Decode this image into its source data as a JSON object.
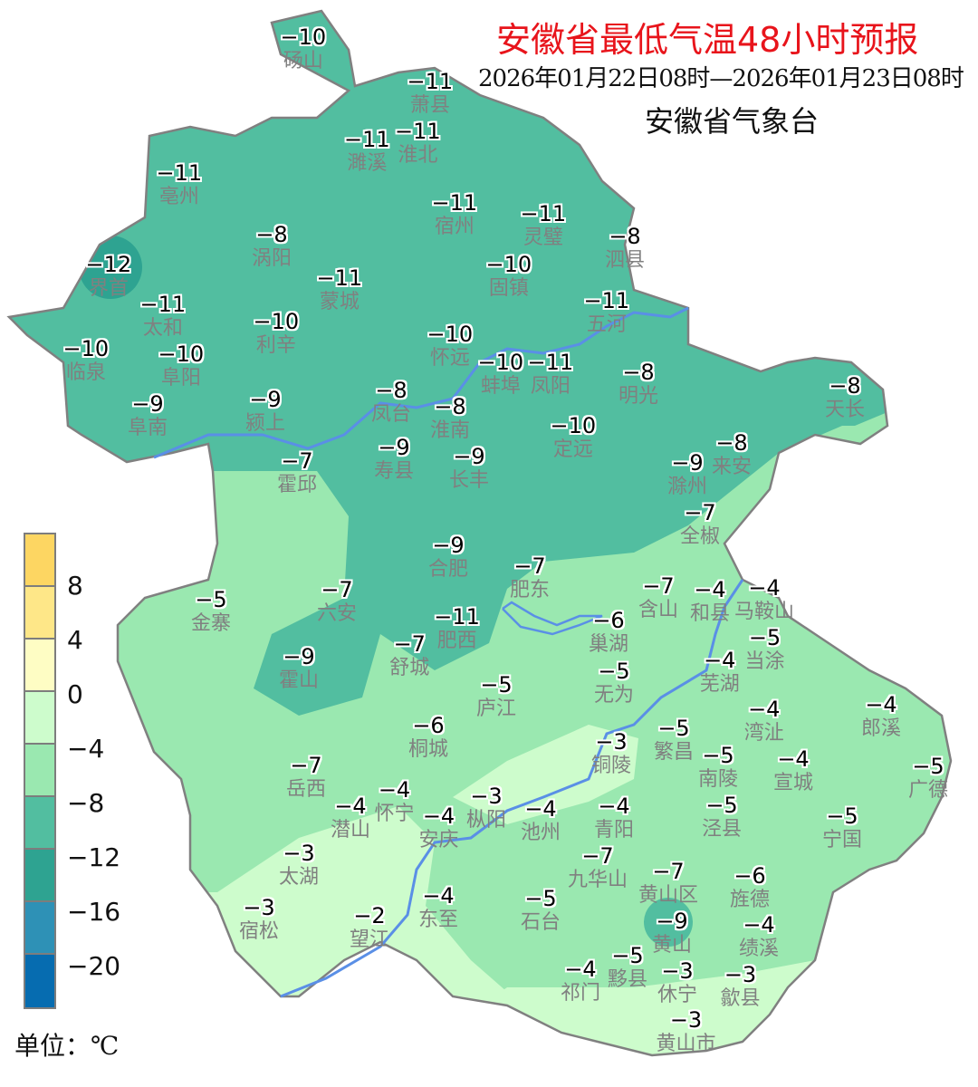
{
  "header": {
    "title": "安徽省最低气温48小时预报",
    "period": "2026年01月22日08时—2026年01月23日08时",
    "issuer": "安徽省气象台"
  },
  "legend": {
    "unit_label": "单位：℃",
    "ticks": [
      "8",
      "4",
      "0",
      "−4",
      "−8",
      "−12",
      "−16",
      "−20"
    ],
    "colors": [
      "#fdd662",
      "#fee788",
      "#fefdc4",
      "#cdfccc",
      "#9ae8b0",
      "#52bea0",
      "#2ea391",
      "#2e91b6",
      "#066cb0"
    ]
  },
  "map_colors": {
    "boundary": "#808080",
    "river": "#5a8fe6"
  },
  "stations": [
    {
      "name": "砀山",
      "value": "−10"
    },
    {
      "name": "萧县",
      "value": "−11"
    },
    {
      "name": "淮北",
      "value": "−11"
    },
    {
      "name": "濉溪",
      "value": "−11"
    },
    {
      "name": "亳州",
      "value": "−11"
    },
    {
      "name": "涡阳",
      "value": "−8"
    },
    {
      "name": "界首",
      "value": "−12"
    },
    {
      "name": "蒙城",
      "value": "−11"
    },
    {
      "name": "宿州",
      "value": "−11"
    },
    {
      "name": "灵璧",
      "value": "−11"
    },
    {
      "name": "泗县",
      "value": "−8"
    },
    {
      "name": "固镇",
      "value": "−10"
    },
    {
      "name": "五河",
      "value": "−11"
    },
    {
      "name": "太和",
      "value": "−11"
    },
    {
      "name": "利辛",
      "value": "−10"
    },
    {
      "name": "临泉",
      "value": "−10"
    },
    {
      "name": "阜阳",
      "value": "−10"
    },
    {
      "name": "怀远",
      "value": "−10"
    },
    {
      "name": "蚌埠",
      "value": "−10"
    },
    {
      "name": "凤阳",
      "value": "−11"
    },
    {
      "name": "明光",
      "value": "−8"
    },
    {
      "name": "天长",
      "value": "−8"
    },
    {
      "name": "阜南",
      "value": "−9"
    },
    {
      "name": "颍上",
      "value": "−9"
    },
    {
      "name": "凤台",
      "value": "−8"
    },
    {
      "name": "淮南",
      "value": "−8"
    },
    {
      "name": "定远",
      "value": "−10"
    },
    {
      "name": "寿县",
      "value": "−9"
    },
    {
      "name": "长丰",
      "value": "−9"
    },
    {
      "name": "霍邱",
      "value": "−7"
    },
    {
      "name": "来安",
      "value": "−8"
    },
    {
      "name": "滁州",
      "value": "−9"
    },
    {
      "name": "全椒",
      "value": "−7"
    },
    {
      "name": "合肥",
      "value": "−9"
    },
    {
      "name": "肥东",
      "value": "−7"
    },
    {
      "name": "含山",
      "value": "−7"
    },
    {
      "name": "和县",
      "value": "−4"
    },
    {
      "name": "马鞍山",
      "value": "−4"
    },
    {
      "name": "当涂",
      "value": "−5"
    },
    {
      "name": "金寨",
      "value": "−5"
    },
    {
      "name": "六安",
      "value": "−7"
    },
    {
      "name": "肥西",
      "value": "−11"
    },
    {
      "name": "巢湖",
      "value": "−6"
    },
    {
      "name": "舒城",
      "value": "−7"
    },
    {
      "name": "霍山",
      "value": "−9"
    },
    {
      "name": "芜湖",
      "value": "−4"
    },
    {
      "name": "庐江",
      "value": "−5"
    },
    {
      "name": "无为",
      "value": "−5"
    },
    {
      "name": "郎溪",
      "value": "−4"
    },
    {
      "name": "湾沚",
      "value": "−4"
    },
    {
      "name": "桐城",
      "value": "−6"
    },
    {
      "name": "繁昌",
      "value": "−5"
    },
    {
      "name": "铜陵",
      "value": "−3"
    },
    {
      "name": "南陵",
      "value": "−5"
    },
    {
      "name": "宣城",
      "value": "−4"
    },
    {
      "name": "广德",
      "value": "−5"
    },
    {
      "name": "岳西",
      "value": "−7"
    },
    {
      "name": "怀宁",
      "value": "−4"
    },
    {
      "name": "潜山",
      "value": "−4"
    },
    {
      "name": "安庆",
      "value": "−4"
    },
    {
      "name": "枞阳",
      "value": "−3"
    },
    {
      "name": "池州",
      "value": "−4"
    },
    {
      "name": "青阳",
      "value": "−4"
    },
    {
      "name": "泾县",
      "value": "−5"
    },
    {
      "name": "宁国",
      "value": "−5"
    },
    {
      "name": "九华山",
      "value": "−7"
    },
    {
      "name": "太湖",
      "value": "−3"
    },
    {
      "name": "宿松",
      "value": "−3"
    },
    {
      "name": "望江",
      "value": "−2"
    },
    {
      "name": "东至",
      "value": "−4"
    },
    {
      "name": "石台",
      "value": "−5"
    },
    {
      "name": "黄山区",
      "value": "−7"
    },
    {
      "name": "旌德",
      "value": "−6"
    },
    {
      "name": "黄山",
      "value": "−9"
    },
    {
      "name": "绩溪",
      "value": "−4"
    },
    {
      "name": "祁门",
      "value": "−4"
    },
    {
      "name": "黟县",
      "value": "−5"
    },
    {
      "name": "歙县",
      "value": "−3"
    },
    {
      "name": "休宁",
      "value": "−3"
    },
    {
      "name": "黄山市",
      "value": "−3"
    }
  ]
}
